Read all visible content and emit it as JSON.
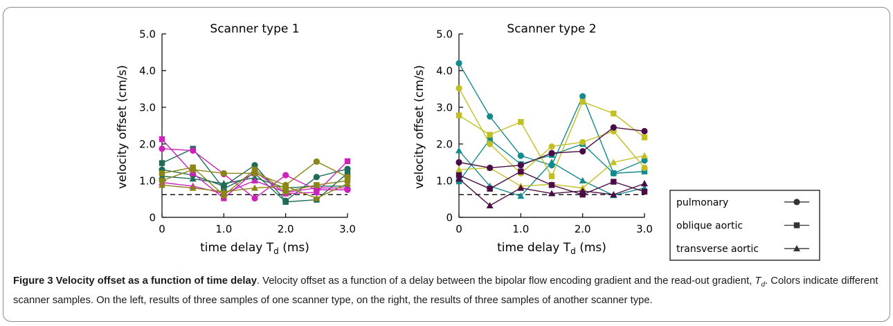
{
  "colors": {
    "sample_a": "#1f6b58",
    "sample_b": "#cc22bb",
    "sample_c": "#8a8514",
    "sample_d": "#138a8e",
    "sample_e": "#c2bf24",
    "sample_f": "#4a0c45",
    "reference_line": "#000000",
    "axis": "#000000"
  },
  "chart_data": [
    {
      "type": "line",
      "title": "Scanner type 1",
      "xlabel": "time delay T",
      "xlabel_sub": "d",
      "xlabel_unit": "(ms)",
      "ylabel": "velocity offset (cm/s)",
      "xlim": [
        0,
        3.0
      ],
      "ylim": [
        0,
        5.0
      ],
      "x_ticks": [
        0,
        1.0,
        2.0,
        3.0
      ],
      "x_tick_labels": [
        "0",
        "1.0",
        "2.0",
        "3.0"
      ],
      "y_ticks": [
        0,
        1.0,
        2.0,
        3.0,
        4.0,
        5.0
      ],
      "y_tick_labels": [
        "0",
        "1.0",
        "2.0",
        "3.0",
        "4.0",
        "5.0"
      ],
      "x": [
        0,
        0.5,
        1.0,
        1.5,
        2.0,
        2.5,
        3.0
      ],
      "reference_line_y": 0.62,
      "grid": false,
      "series": [
        {
          "color_key": "sample_a",
          "marker": "circle",
          "values": [
            1.3,
            1.15,
            0.85,
            1.42,
            0.45,
            1.1,
            1.32
          ]
        },
        {
          "color_key": "sample_a",
          "marker": "square",
          "values": [
            1.48,
            1.87,
            0.78,
            1.2,
            0.42,
            0.48,
            1.2
          ]
        },
        {
          "color_key": "sample_a",
          "marker": "triangle",
          "values": [
            1.12,
            1.05,
            0.92,
            1.08,
            0.8,
            0.85,
            0.85
          ]
        },
        {
          "color_key": "sample_b",
          "marker": "circle",
          "values": [
            1.87,
            1.82,
            1.18,
            0.52,
            1.15,
            0.75,
            0.75
          ]
        },
        {
          "color_key": "sample_b",
          "marker": "square",
          "values": [
            2.13,
            1.2,
            0.52,
            1.25,
            0.65,
            0.68,
            1.53
          ]
        },
        {
          "color_key": "sample_b",
          "marker": "triangle",
          "values": [
            0.95,
            0.85,
            0.65,
            1.0,
            0.68,
            0.8,
            0.8
          ]
        },
        {
          "color_key": "sample_c",
          "marker": "circle",
          "values": [
            1.0,
            1.3,
            1.2,
            1.2,
            0.88,
            1.52,
            1.1
          ]
        },
        {
          "color_key": "sample_c",
          "marker": "square",
          "values": [
            1.2,
            1.36,
            0.6,
            1.3,
            0.7,
            0.88,
            1.0
          ]
        },
        {
          "color_key": "sample_c",
          "marker": "triangle",
          "values": [
            0.88,
            0.8,
            0.7,
            0.8,
            0.85,
            0.52,
            0.92
          ]
        }
      ]
    },
    {
      "type": "line",
      "title": "Scanner type 2",
      "xlabel": "time delay T",
      "xlabel_sub": "d",
      "xlabel_unit": "(ms)",
      "ylabel": "velocity offset (cm/s)",
      "xlim": [
        0,
        3.0
      ],
      "ylim": [
        0,
        5.0
      ],
      "x_ticks": [
        0,
        1.0,
        2.0,
        3.0
      ],
      "x_tick_labels": [
        "0",
        "1.0",
        "2.0",
        "3.0"
      ],
      "y_ticks": [
        0,
        1.0,
        2.0,
        3.0,
        4.0,
        5.0
      ],
      "y_tick_labels": [
        "0",
        "1.0",
        "2.0",
        "3.0",
        "4.0",
        "5.0"
      ],
      "x": [
        0,
        0.5,
        1.0,
        1.5,
        2.0,
        2.5,
        3.0
      ],
      "reference_line_y": 0.62,
      "grid": false,
      "series": [
        {
          "color_key": "sample_d",
          "marker": "circle",
          "values": [
            4.2,
            2.75,
            1.68,
            1.42,
            3.3,
            1.2,
            1.55
          ]
        },
        {
          "color_key": "sample_d",
          "marker": "square",
          "values": [
            0.98,
            2.12,
            1.45,
            1.7,
            2.0,
            1.2,
            1.25
          ]
        },
        {
          "color_key": "sample_d",
          "marker": "triangle",
          "values": [
            1.82,
            0.85,
            0.58,
            1.5,
            1.0,
            0.6,
            0.8
          ]
        },
        {
          "color_key": "sample_e",
          "marker": "circle",
          "values": [
            3.52,
            2.0,
            1.2,
            1.93,
            2.05,
            2.35,
            1.35
          ]
        },
        {
          "color_key": "sample_e",
          "marker": "square",
          "values": [
            2.78,
            2.25,
            2.6,
            1.12,
            3.15,
            2.83,
            2.18
          ]
        },
        {
          "color_key": "sample_e",
          "marker": "triangle",
          "values": [
            1.3,
            1.35,
            0.85,
            0.9,
            0.8,
            1.5,
            1.68
          ]
        },
        {
          "color_key": "sample_f",
          "marker": "circle",
          "values": [
            1.5,
            1.35,
            1.42,
            1.75,
            1.8,
            2.45,
            2.35
          ]
        },
        {
          "color_key": "sample_f",
          "marker": "square",
          "values": [
            1.15,
            0.78,
            1.25,
            0.88,
            0.62,
            0.97,
            0.7
          ]
        },
        {
          "color_key": "sample_f",
          "marker": "triangle",
          "values": [
            1.05,
            0.32,
            0.8,
            0.65,
            0.72,
            0.62,
            0.92
          ]
        }
      ],
      "legend": {
        "placement": "right",
        "entries": [
          {
            "label": "pulmonary",
            "marker": "circle"
          },
          {
            "label": "oblique aortic",
            "marker": "square"
          },
          {
            "label": "transverse aortic",
            "marker": "triangle"
          }
        ]
      }
    }
  ],
  "caption": {
    "title": "Figure 3 Velocity offset as a function of time delay",
    "body_before_td": ". Velocity offset as a function of a delay between the bipolar flow encoding gradient and the read-out gradient, ",
    "td_symbol": "T",
    "td_sub": "d",
    "body_after_td": ". Colors indicate different scanner samples. On the left, results of three samples of one scanner type, on the right, the results of three samples of another scanner type."
  }
}
